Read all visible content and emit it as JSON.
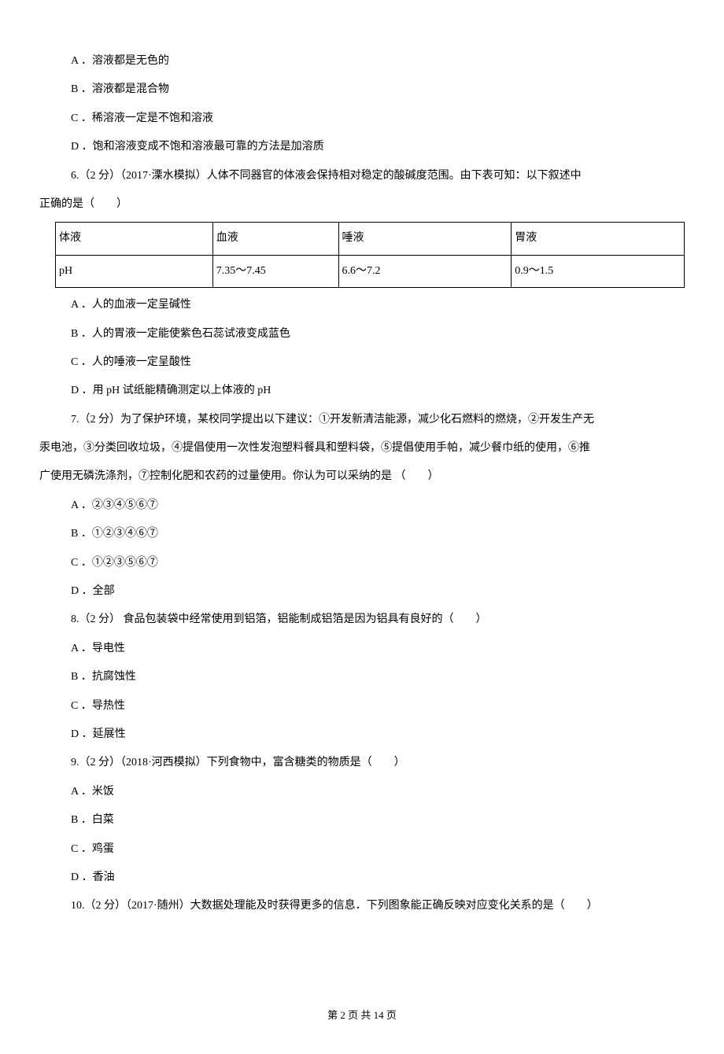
{
  "q5": {
    "A": "A ．溶液都是无色的",
    "B": "B ．溶液都是混合物",
    "C": "C ．稀溶液一定是不饱和溶液",
    "D": "D ．饱和溶液变成不饱和溶液最可靠的方法是加溶质"
  },
  "q6": {
    "stem_line1": "6.（2 分）（2017·溧水模拟）人体不同器官的体液会保持相对稳定的酸碱度范围。由下表可知：以下叙述中",
    "stem_line2": "正确的是（　　）",
    "A": "A ．人的血液一定呈碱性",
    "B": "B ．人的胃液一定能使紫色石蕊试液变成蓝色",
    "C": "C ．人的唾液一定呈酸性",
    "D": "D ．用 pH 试纸能精确测定以上体液的 pH"
  },
  "table": {
    "headers": [
      "体液",
      "血液",
      "唾液",
      "胃液"
    ],
    "row2": [
      "pH",
      "7.35～7.45",
      "6.6～7.2",
      "0.9～1.5"
    ],
    "col_widths": [
      "200px",
      "160px",
      "220px",
      "220px"
    ]
  },
  "q7": {
    "stem_line1": "7.（2 分）为了保护环境，某校同学提出以下建议：①开发新清洁能源，减少化石燃料的燃烧，②开发生产无",
    "stem_line2": "汞电池，③分类回收垃圾，④提倡使用一次性发泡塑料餐具和塑料袋，⑤提倡使用手帕，减少餐巾纸的使用，⑥推",
    "stem_line3": "广使用无磷洗涤剂，⑦控制化肥和农药的过量使用。你认为可以采纳的是 （　　）",
    "A": "A ．②③④⑤⑥⑦",
    "B": "B ．①②③④⑥⑦",
    "C": "C ．①②③⑤⑥⑦",
    "D": "D ．全部"
  },
  "q8": {
    "stem": "8.（2 分） 食品包装袋中经常使用到铝箔，铝能制成铝箔是因为铝具有良好的（　　）",
    "A": "A ．导电性",
    "B": "B ．抗腐蚀性",
    "C": "C ．导热性",
    "D": "D ．延展性"
  },
  "q9": {
    "stem": "9.（2 分）（2018·河西模拟）下列食物中，富含糖类的物质是（　　）",
    "A": "A ．米饭",
    "B": "B ．白菜",
    "C": "C ．鸡蛋",
    "D": "D ．香油"
  },
  "q10": {
    "stem": "10.（2 分）（2017·随州）大数据处理能及时获得更多的信息．下列图象能正确反映对应变化关系的是（　　）"
  },
  "footer": "第 2 页 共 14 页"
}
